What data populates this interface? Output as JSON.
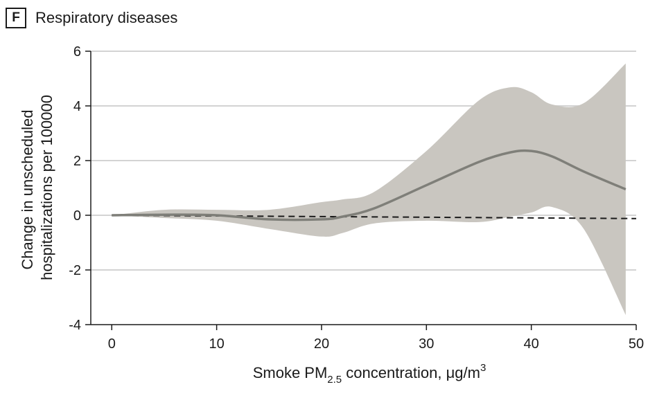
{
  "panel": {
    "letter": "F",
    "title": "Respiratory diseases"
  },
  "chart_data": {
    "type": "line",
    "xlabel_main": "Smoke PM",
    "xlabel_sub": "2.5",
    "xlabel_rest": " concentration, μg/m",
    "xlabel_sup": "3",
    "ylabel_line1": "Change in unscheduled",
    "ylabel_line2": "hospitalizations per 100000",
    "xlim": [
      -2,
      50
    ],
    "ylim": [
      -4,
      6
    ],
    "x_ticks": [
      0,
      10,
      20,
      30,
      40,
      50
    ],
    "y_ticks": [
      -4,
      -2,
      0,
      2,
      4,
      6
    ],
    "x_tick_labels": [
      "0",
      "10",
      "20",
      "30",
      "40",
      "50"
    ],
    "y_tick_labels": [
      "-4",
      "-2",
      "0",
      "2",
      "4",
      "6"
    ],
    "grid": "horizontal",
    "colors": {
      "line": "#7f7f79",
      "band": "#c9c6c0",
      "grid": "#d3d3d3",
      "reference": "#1a1a1a"
    },
    "series": [
      {
        "x": [
          0,
          5,
          10,
          15,
          20,
          22,
          25,
          30,
          35,
          38,
          40,
          42,
          45,
          49
        ],
        "y": [
          0,
          0.02,
          0.0,
          -0.15,
          -0.15,
          -0.05,
          0.25,
          1.1,
          1.95,
          2.3,
          2.35,
          2.15,
          1.6,
          0.95
        ],
        "lower": [
          0,
          -0.1,
          -0.2,
          -0.5,
          -0.78,
          -0.65,
          -0.3,
          -0.2,
          -0.25,
          -0.05,
          0.1,
          0.3,
          -0.5,
          -3.65
        ],
        "upper": [
          0,
          0.2,
          0.2,
          0.2,
          0.48,
          0.58,
          0.85,
          2.35,
          4.2,
          4.68,
          4.5,
          4.05,
          4.1,
          5.55
        ]
      }
    ],
    "reference_line": {
      "x": [
        0,
        50
      ],
      "y": [
        0,
        -0.12
      ]
    }
  }
}
